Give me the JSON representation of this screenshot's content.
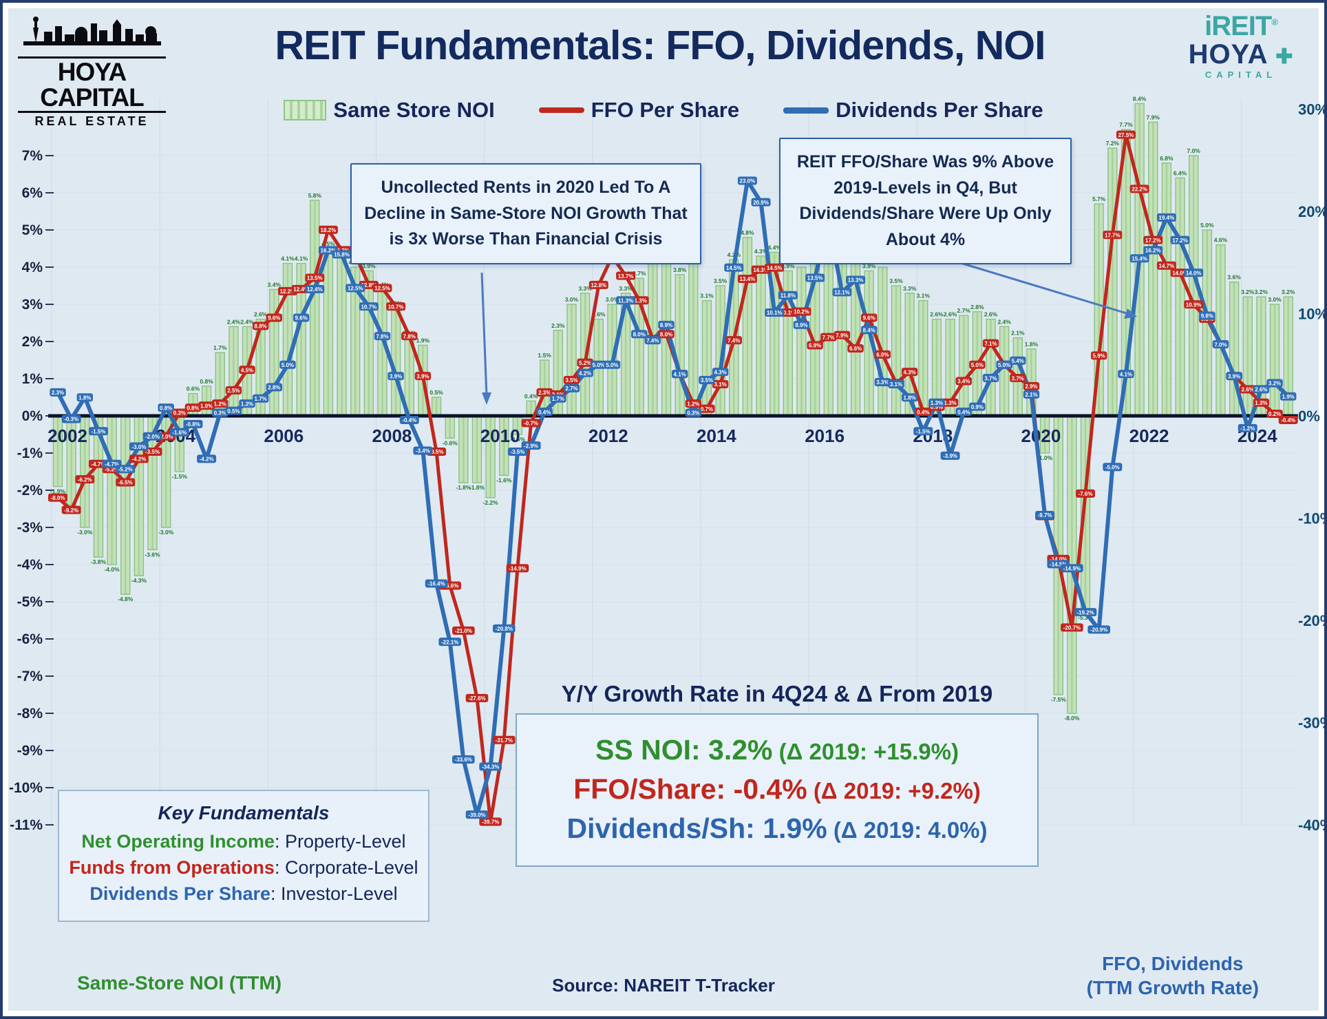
{
  "header": {
    "title": "REIT Fundamentals: FFO, Dividends, NOI",
    "logo_left": {
      "line1": "HOYA CAPITAL",
      "line2": "REAL ESTATE"
    },
    "logo_right": {
      "brand1": "iREIT",
      "reg": "®",
      "plus": "✚",
      "brand2": "HOYA",
      "sub": "CAPITAL"
    }
  },
  "legend": {
    "items": [
      {
        "label": "Same Store NOI"
      },
      {
        "label": "FFO Per Share"
      },
      {
        "label": "Dividends Per Share"
      }
    ]
  },
  "annotations": {
    "box1": "Uncollected Rents in 2020 Led To A Decline in Same-Store NOI Growth That is 3x Worse Than Financial Crisis",
    "box2": "REIT FFO/Share Was 9% Above 2019-Levels in Q4, But Dividends/Share Were Up Only About 4%"
  },
  "summary": {
    "title": "Y/Y Growth Rate in 4Q24 & Δ From 2019",
    "rows": [
      {
        "label": "SS NOI: 3.2%",
        "delta": " (Δ 2019: +15.9%)"
      },
      {
        "label": "FFO/Share: -0.4%",
        "delta": " (Δ 2019: +9.2%)"
      },
      {
        "label": "Dividends/Sh: 1.9%",
        "delta": " (Δ 2019: 4.0%)"
      }
    ]
  },
  "key_fundamentals": {
    "title": "Key Fundamentals",
    "rows": [
      {
        "term": "Net Operating Income",
        "desc": ": Property-Level"
      },
      {
        "term": "Funds from Operations",
        "desc": ": Corporate-Level"
      },
      {
        "term": "Dividends Per Share",
        "desc": ": Investor-Level"
      }
    ]
  },
  "footer": {
    "left": "Same-Store NOI (TTM)",
    "center": "Source: NAREIT T-Tracker",
    "right1": "FFO, Dividends",
    "right2": "(TTM Growth Rate)"
  },
  "chart_data": {
    "type": "bar+line dual-axis, quarterly TTM growth rates",
    "x_start_year": 2002,
    "points_per_year": 4,
    "year_ticks": [
      2002,
      2004,
      2006,
      2008,
      2010,
      2012,
      2014,
      2016,
      2018,
      2020,
      2022,
      2024
    ],
    "left_axis": {
      "label": "Same-Store NOI (TTM)",
      "min": -11,
      "max": 7,
      "step": 1,
      "format": "%"
    },
    "right_axis": {
      "label": "FFO, Dividends (TTM Growth Rate)",
      "min": -40,
      "max": 30,
      "step": 10,
      "format": "%"
    },
    "series": [
      {
        "name": "Same Store NOI",
        "type": "bar",
        "axis": "left",
        "color": "#c3e1b8",
        "stroke": "#8ac084",
        "label_color": "#1d7a27",
        "values": [
          -1.9,
          -2.4,
          -3.0,
          -3.8,
          -4.0,
          -4.8,
          -4.3,
          -3.6,
          -3.0,
          -1.5,
          0.6,
          0.8,
          1.7,
          2.4,
          2.4,
          2.6,
          3.4,
          4.1,
          4.1,
          5.8,
          4.5,
          4.3,
          4.0,
          3.9,
          3.4,
          2.9,
          2.1,
          1.9,
          0.5,
          -0.6,
          -1.8,
          -1.8,
          -2.2,
          -1.6,
          -0.5,
          0.4,
          1.5,
          2.3,
          3.0,
          3.3,
          2.6,
          3.0,
          3.3,
          3.7,
          4.3,
          4.1,
          3.8,
          4.1,
          3.1,
          3.5,
          4.2,
          4.8,
          4.3,
          4.4,
          3.9,
          4.0,
          4.2,
          4.9,
          4.3,
          4.2,
          3.9,
          4.0,
          3.5,
          3.3,
          3.1,
          2.6,
          2.6,
          2.7,
          2.8,
          2.6,
          2.4,
          2.1,
          1.8,
          -1.0,
          -7.5,
          -8.0,
          -5.3,
          5.7,
          7.2,
          7.7,
          8.4,
          7.9,
          6.8,
          6.4,
          7.0,
          5.0,
          4.6,
          3.6,
          3.2,
          3.2,
          3.0,
          3.2
        ]
      },
      {
        "name": "FFO Per Share",
        "type": "line",
        "axis": "right",
        "color": "#c0271d",
        "values": [
          -8.0,
          -9.2,
          -6.2,
          -4.7,
          -5.2,
          -6.5,
          -4.2,
          -3.5,
          -2.0,
          0.3,
          0.8,
          1.0,
          1.2,
          2.5,
          4.5,
          8.8,
          9.6,
          12.2,
          12.4,
          13.5,
          18.2,
          16.2,
          15.8,
          12.8,
          12.5,
          10.7,
          7.8,
          3.9,
          -3.5,
          -16.6,
          -21.0,
          -27.6,
          -39.7,
          -31.7,
          -14.9,
          -0.7,
          2.3,
          2.1,
          3.5,
          5.2,
          12.8,
          15.6,
          13.7,
          11.3,
          7.5,
          8.0,
          4.1,
          1.2,
          0.7,
          3.1,
          7.4,
          13.4,
          14.3,
          14.5,
          10.1,
          10.2,
          6.9,
          7.7,
          7.9,
          6.6,
          9.6,
          6.0,
          3.2,
          4.3,
          0.4,
          0.9,
          1.3,
          3.4,
          5.0,
          7.1,
          5.0,
          3.7,
          2.9,
          -9.8,
          -14.0,
          -20.7,
          -7.6,
          5.9,
          17.7,
          27.5,
          22.2,
          17.2,
          14.7,
          14.0,
          10.9,
          9.5,
          7.0,
          3.9,
          2.6,
          1.3,
          0.2,
          -0.4
        ]
      },
      {
        "name": "Dividends Per Share",
        "type": "line",
        "axis": "right",
        "color": "#2f6db5",
        "values": [
          2.3,
          -0.3,
          1.8,
          -1.5,
          -4.7,
          -5.2,
          -3.0,
          -2.0,
          0.8,
          -1.6,
          -0.8,
          -4.2,
          0.3,
          0.5,
          1.2,
          1.7,
          2.8,
          5.0,
          9.6,
          12.4,
          16.2,
          15.8,
          12.5,
          10.7,
          7.8,
          3.9,
          -0.4,
          -3.4,
          -16.4,
          -22.1,
          -33.6,
          -39.0,
          -34.3,
          -20.8,
          -3.5,
          -2.9,
          0.4,
          1.7,
          2.7,
          4.2,
          5.0,
          5.0,
          11.3,
          8.0,
          7.4,
          8.9,
          4.1,
          0.3,
          3.5,
          4.3,
          14.5,
          23.0,
          20.9,
          10.1,
          11.8,
          8.9,
          13.5,
          19.0,
          12.1,
          13.3,
          8.4,
          3.3,
          3.1,
          1.8,
          -1.5,
          1.3,
          -3.9,
          0.4,
          0.9,
          3.7,
          5.0,
          5.4,
          2.1,
          -9.7,
          -14.5,
          -14.9,
          -19.2,
          -20.9,
          -5.0,
          4.1,
          15.4,
          16.2,
          19.4,
          17.2,
          14.0,
          9.8,
          7.0,
          3.9,
          -1.2,
          2.6,
          3.2,
          1.9
        ]
      }
    ]
  }
}
